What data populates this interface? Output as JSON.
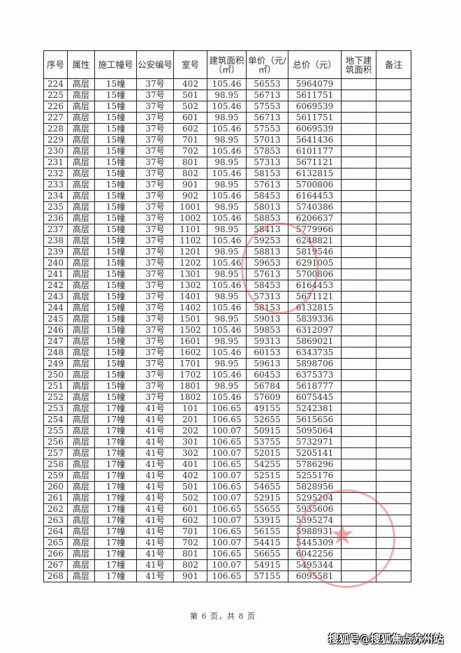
{
  "table": {
    "headers": [
      "序号",
      "属性",
      "施工幢号",
      "公安编号",
      "室号",
      "建筑面积（㎡）",
      "单价（元/㎡）",
      "总价（元）",
      "地下建筑面积",
      "备注"
    ],
    "rows": [
      [
        "224",
        "高层",
        "15幢",
        "37号",
        "402",
        "105.46",
        "56553",
        "5964079",
        "",
        ""
      ],
      [
        "225",
        "高层",
        "15幢",
        "37号",
        "501",
        "98.95",
        "56713",
        "5611751",
        "",
        ""
      ],
      [
        "226",
        "高层",
        "15幢",
        "37号",
        "502",
        "105.46",
        "57553",
        "6069539",
        "",
        ""
      ],
      [
        "227",
        "高层",
        "15幢",
        "37号",
        "601",
        "98.95",
        "56713",
        "5611751",
        "",
        ""
      ],
      [
        "228",
        "高层",
        "15幢",
        "37号",
        "602",
        "105.46",
        "57553",
        "6069539",
        "",
        ""
      ],
      [
        "229",
        "高层",
        "15幢",
        "37号",
        "701",
        "98.95",
        "57013",
        "5641436",
        "",
        ""
      ],
      [
        "230",
        "高层",
        "15幢",
        "37号",
        "702",
        "105.46",
        "57853",
        "6101177",
        "",
        ""
      ],
      [
        "231",
        "高层",
        "15幢",
        "37号",
        "801",
        "98.95",
        "57313",
        "5671121",
        "",
        ""
      ],
      [
        "232",
        "高层",
        "15幢",
        "37号",
        "802",
        "105.46",
        "58153",
        "6132815",
        "",
        ""
      ],
      [
        "233",
        "高层",
        "15幢",
        "37号",
        "901",
        "98.95",
        "57613",
        "5700806",
        "",
        ""
      ],
      [
        "234",
        "高层",
        "15幢",
        "37号",
        "902",
        "105.46",
        "58453",
        "6164453",
        "",
        ""
      ],
      [
        "235",
        "高层",
        "15幢",
        "37号",
        "1001",
        "98.95",
        "58013",
        "5740386",
        "",
        ""
      ],
      [
        "236",
        "高层",
        "15幢",
        "37号",
        "1002",
        "105.46",
        "58853",
        "6206637",
        "",
        ""
      ],
      [
        "237",
        "高层",
        "15幢",
        "37号",
        "1101",
        "98.95",
        "58413",
        "5779966",
        "",
        ""
      ],
      [
        "238",
        "高层",
        "15幢",
        "37号",
        "1102",
        "105.46",
        "59253",
        "6248821",
        "",
        ""
      ],
      [
        "239",
        "高层",
        "15幢",
        "37号",
        "1201",
        "98.95",
        "58813",
        "5819546",
        "",
        ""
      ],
      [
        "240",
        "高层",
        "15幢",
        "37号",
        "1202",
        "105.46",
        "59653",
        "6291005",
        "",
        ""
      ],
      [
        "241",
        "高层",
        "15幢",
        "37号",
        "1301",
        "98.95",
        "57613",
        "5700806",
        "",
        ""
      ],
      [
        "242",
        "高层",
        "15幢",
        "37号",
        "1302",
        "105.46",
        "58453",
        "6164453",
        "",
        ""
      ],
      [
        "243",
        "高层",
        "15幢",
        "37号",
        "1401",
        "98.95",
        "57313",
        "5671121",
        "",
        ""
      ],
      [
        "244",
        "高层",
        "15幢",
        "37号",
        "1402",
        "105.46",
        "58153",
        "6132815",
        "",
        ""
      ],
      [
        "245",
        "高层",
        "15幢",
        "37号",
        "1501",
        "98.95",
        "59013",
        "5839336",
        "",
        ""
      ],
      [
        "246",
        "高层",
        "15幢",
        "37号",
        "1502",
        "105.46",
        "59853",
        "6312097",
        "",
        ""
      ],
      [
        "247",
        "高层",
        "15幢",
        "37号",
        "1601",
        "98.95",
        "59313",
        "5869021",
        "",
        ""
      ],
      [
        "248",
        "高层",
        "15幢",
        "37号",
        "1602",
        "105.46",
        "60153",
        "6343735",
        "",
        ""
      ],
      [
        "249",
        "高层",
        "15幢",
        "37号",
        "1701",
        "98.95",
        "59613",
        "5898706",
        "",
        ""
      ],
      [
        "250",
        "高层",
        "15幢",
        "37号",
        "1702",
        "105.46",
        "60453",
        "6375373",
        "",
        ""
      ],
      [
        "251",
        "高层",
        "15幢",
        "37号",
        "1801",
        "98.95",
        "56784",
        "5618777",
        "",
        ""
      ],
      [
        "252",
        "高层",
        "15幢",
        "37号",
        "1802",
        "105.46",
        "57609",
        "6075445",
        "",
        ""
      ],
      [
        "253",
        "高层",
        "17幢",
        "41号",
        "101",
        "106.65",
        "49155",
        "5242381",
        "",
        ""
      ],
      [
        "254",
        "高层",
        "17幢",
        "41号",
        "201",
        "106.65",
        "52655",
        "5615656",
        "",
        ""
      ],
      [
        "255",
        "高层",
        "17幢",
        "41号",
        "202",
        "100.07",
        "50915",
        "5095064",
        "",
        ""
      ],
      [
        "256",
        "高层",
        "17幢",
        "41号",
        "301",
        "106.65",
        "53755",
        "5732971",
        "",
        ""
      ],
      [
        "257",
        "高层",
        "17幢",
        "41号",
        "302",
        "100.07",
        "52015",
        "5205141",
        "",
        ""
      ],
      [
        "258",
        "高层",
        "17幢",
        "41号",
        "401",
        "106.65",
        "54255",
        "5786296",
        "",
        ""
      ],
      [
        "259",
        "高层",
        "17幢",
        "41号",
        "402",
        "100.07",
        "52515",
        "5255176",
        "",
        ""
      ],
      [
        "260",
        "高层",
        "17幢",
        "41号",
        "501",
        "106.65",
        "54655",
        "5828956",
        "",
        ""
      ],
      [
        "261",
        "高层",
        "17幢",
        "41号",
        "502",
        "100.07",
        "52915",
        "5295204",
        "",
        ""
      ],
      [
        "262",
        "高层",
        "17幢",
        "41号",
        "601",
        "106.65",
        "55655",
        "5935606",
        "",
        ""
      ],
      [
        "263",
        "高层",
        "17幢",
        "41号",
        "602",
        "100.07",
        "53915",
        "5395274",
        "",
        ""
      ],
      [
        "264",
        "高层",
        "17幢",
        "41号",
        "701",
        "106.65",
        "56155",
        "5988931",
        "",
        ""
      ],
      [
        "265",
        "高层",
        "17幢",
        "41号",
        "702",
        "100.07",
        "54415",
        "5445309",
        "",
        ""
      ],
      [
        "266",
        "高层",
        "17幢",
        "41号",
        "801",
        "106.65",
        "56655",
        "6042256",
        "",
        ""
      ],
      [
        "267",
        "高层",
        "17幢",
        "41号",
        "802",
        "100.07",
        "54915",
        "5495344",
        "",
        ""
      ],
      [
        "268",
        "高层",
        "17幢",
        "41号",
        "901",
        "106.65",
        "57155",
        "6095581",
        "",
        ""
      ]
    ]
  },
  "footer": "第 6 页，共 8 页",
  "watermark": "搜狐号@搜狐焦点苏州站",
  "stamp_color": "#dc505a"
}
